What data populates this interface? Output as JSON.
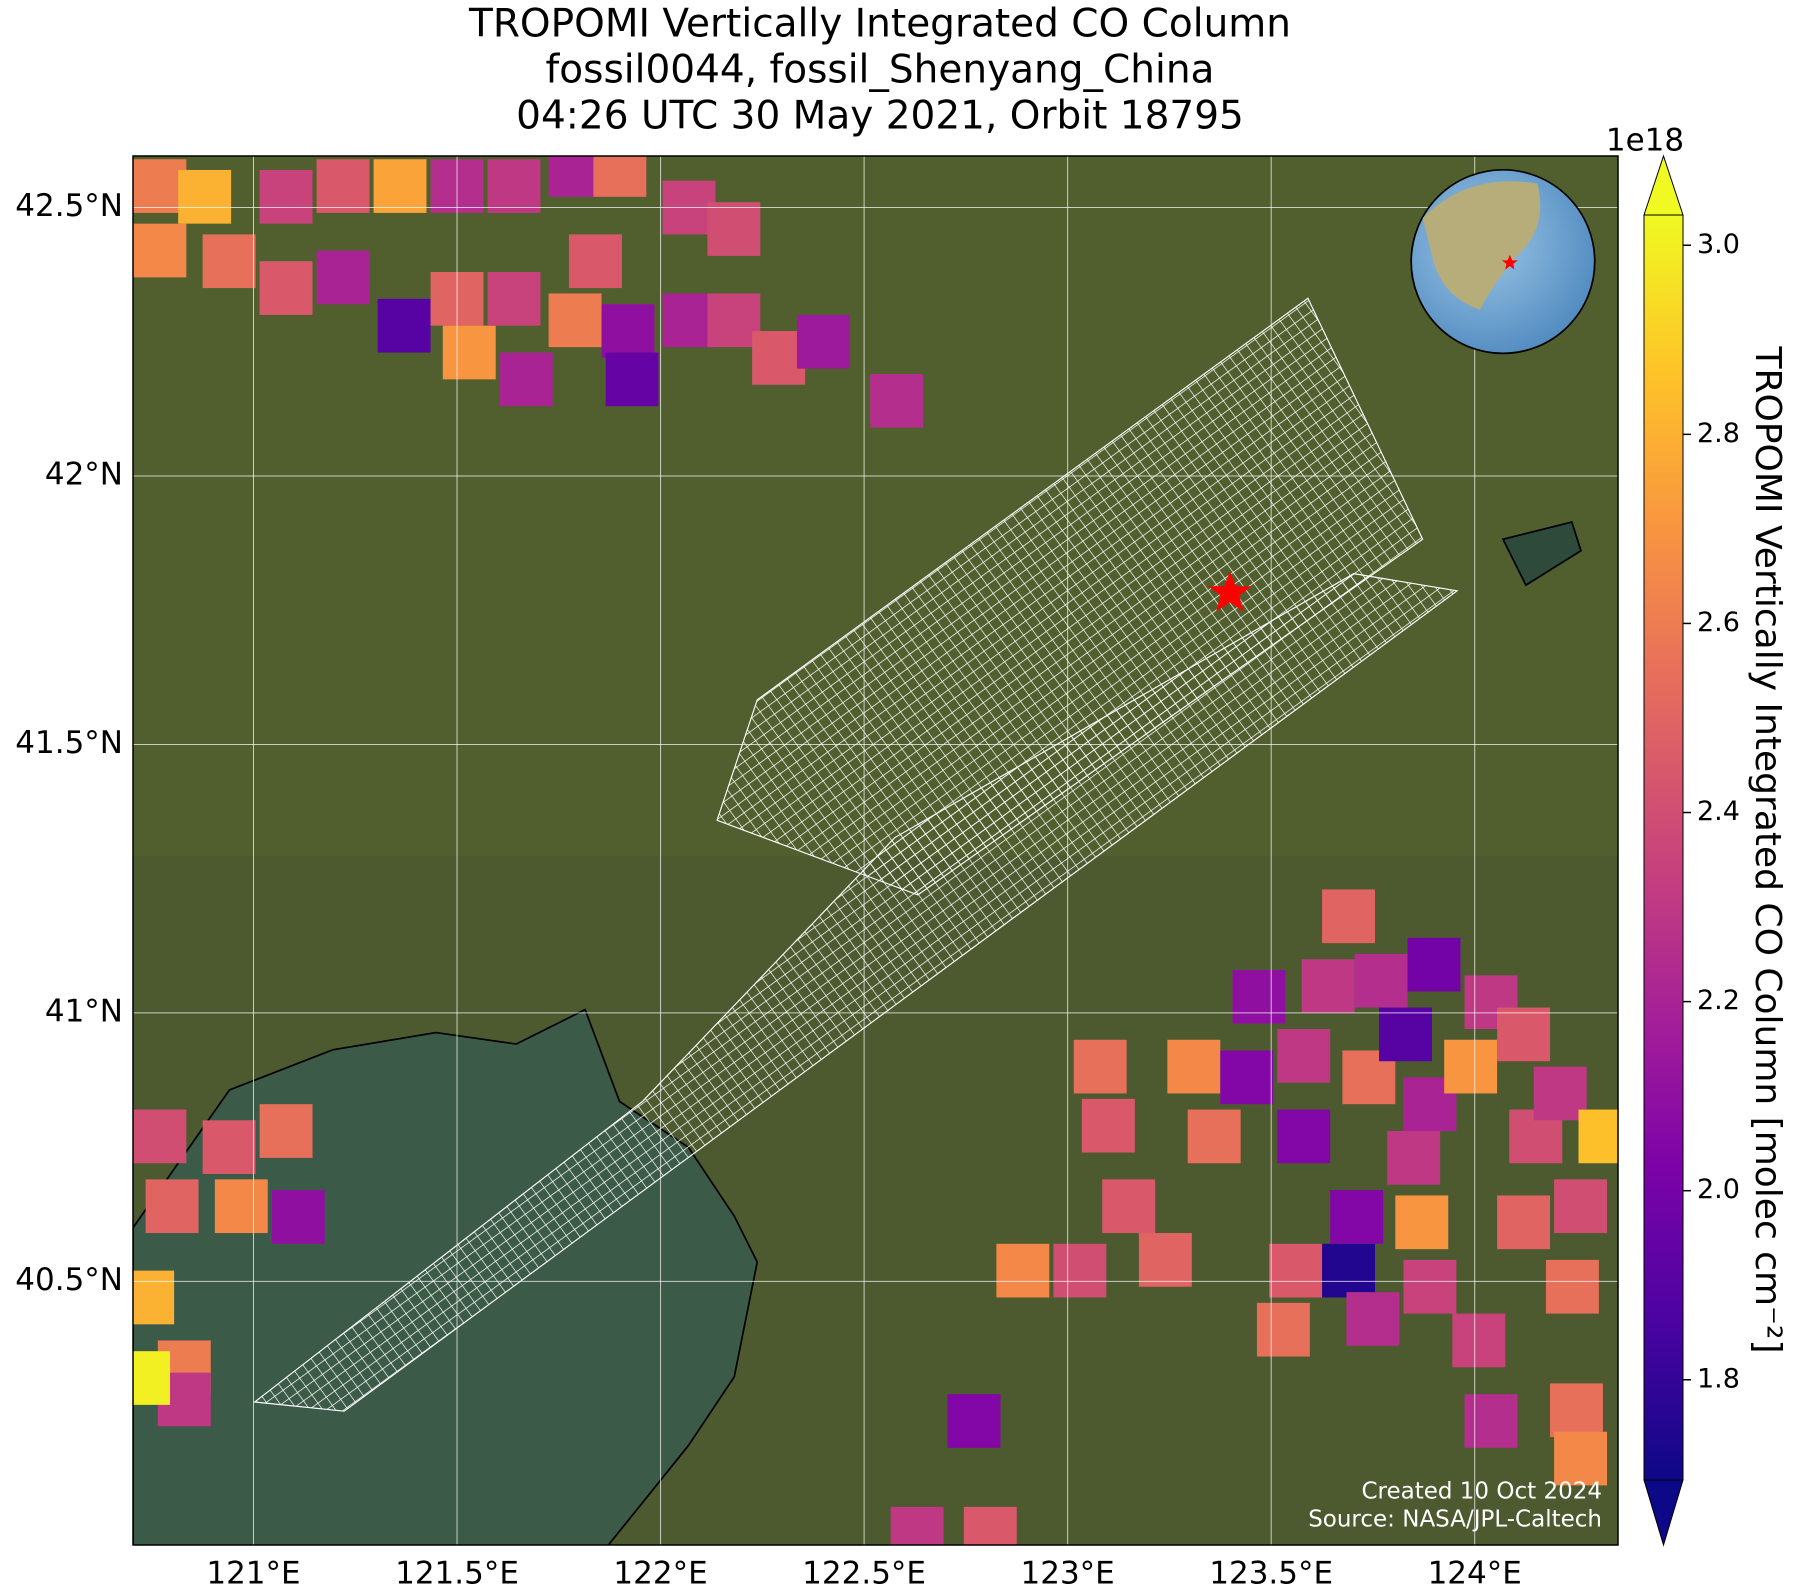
{
  "chart_data": {
    "type": "map",
    "title": [
      "TROPOMI Vertically Integrated CO Column",
      "fossil0044, fossil_Shenyang_China",
      "04:26 UTC 30 May 2021, Orbit 18795"
    ],
    "xlim": [
      120.704,
      124.352
    ],
    "ylim": [
      40.009,
      42.596
    ],
    "xticks": [
      {
        "value": 121,
        "label": "121°E"
      },
      {
        "value": 121.5,
        "label": "121.5°E"
      },
      {
        "value": 122,
        "label": "122°E"
      },
      {
        "value": 122.5,
        "label": "122.5°E"
      },
      {
        "value": 123,
        "label": "123°E"
      },
      {
        "value": 123.5,
        "label": "123.5°E"
      },
      {
        "value": 124,
        "label": "124°E"
      }
    ],
    "yticks": [
      {
        "value": 40.5,
        "label": "40.5°N"
      },
      {
        "value": 41,
        "label": "41°N"
      },
      {
        "value": 41.5,
        "label": "41.5°N"
      },
      {
        "value": 42,
        "label": "42°N"
      },
      {
        "value": 42.5,
        "label": "42.5°N"
      }
    ],
    "grid": true,
    "colorbar": {
      "colormap": "plasma",
      "clim": [
        1.694,
        3.032
      ],
      "extend": "both",
      "exponent": "1e18",
      "label": "TROPOMI Vertically Integrated CO Column [molec cm⁻²]",
      "ticks": [
        1.8,
        {
          "value": 2,
          "label": "2.0"
        },
        2.2,
        2.4,
        2.6,
        2.8,
        {
          "value": 3,
          "label": "3.0"
        }
      ]
    },
    "annotations": [
      "Created 10 Oct 2024",
      "Source: NASA/JPL-Caltech"
    ],
    "cell_size": [
      0.13,
      0.1
    ],
    "cells": [
      {
        "lon": 120.77,
        "lat": 42.54,
        "value": 2.6
      },
      {
        "lon": 120.88,
        "lat": 42.52,
        "value": 2.8
      },
      {
        "lon": 120.77,
        "lat": 42.42,
        "value": 2.65
      },
      {
        "lon": 120.94,
        "lat": 42.4,
        "value": 2.55
      },
      {
        "lon": 121.08,
        "lat": 42.52,
        "value": 2.35
      },
      {
        "lon": 121.22,
        "lat": 42.54,
        "value": 2.45
      },
      {
        "lon": 121.36,
        "lat": 42.54,
        "value": 2.75
      },
      {
        "lon": 121.5,
        "lat": 42.54,
        "value": 2.25
      },
      {
        "lon": 121.64,
        "lat": 42.54,
        "value": 2.3
      },
      {
        "lon": 121.79,
        "lat": 42.57,
        "value": 2.2
      },
      {
        "lon": 121.9,
        "lat": 42.57,
        "value": 2.55
      },
      {
        "lon": 122.07,
        "lat": 42.5,
        "value": 2.35
      },
      {
        "lon": 122.18,
        "lat": 42.46,
        "value": 2.4
      },
      {
        "lon": 121.08,
        "lat": 42.35,
        "value": 2.45
      },
      {
        "lon": 121.22,
        "lat": 42.37,
        "value": 2.2
      },
      {
        "lon": 121.37,
        "lat": 42.28,
        "value": 1.9
      },
      {
        "lon": 121.5,
        "lat": 42.33,
        "value": 2.5
      },
      {
        "lon": 121.53,
        "lat": 42.23,
        "value": 2.7
      },
      {
        "lon": 121.64,
        "lat": 42.33,
        "value": 2.35
      },
      {
        "lon": 121.67,
        "lat": 42.18,
        "value": 2.2
      },
      {
        "lon": 121.79,
        "lat": 42.29,
        "value": 2.6
      },
      {
        "lon": 121.84,
        "lat": 42.4,
        "value": 2.45
      },
      {
        "lon": 121.92,
        "lat": 42.27,
        "value": 2.1
      },
      {
        "lon": 121.93,
        "lat": 42.18,
        "value": 1.95
      },
      {
        "lon": 122.07,
        "lat": 42.29,
        "value": 2.2
      },
      {
        "lon": 122.18,
        "lat": 42.29,
        "value": 2.35
      },
      {
        "lon": 122.29,
        "lat": 42.22,
        "value": 2.45
      },
      {
        "lon": 122.4,
        "lat": 42.25,
        "value": 2.15
      },
      {
        "lon": 122.58,
        "lat": 42.14,
        "value": 2.25
      },
      {
        "lon": 123.08,
        "lat": 40.9,
        "value": 2.55
      },
      {
        "lon": 123.1,
        "lat": 40.79,
        "value": 2.45
      },
      {
        "lon": 123.15,
        "lat": 40.64,
        "value": 2.45
      },
      {
        "lon": 123.24,
        "lat": 40.54,
        "value": 2.5
      },
      {
        "lon": 122.89,
        "lat": 40.52,
        "value": 2.65
      },
      {
        "lon": 123.03,
        "lat": 40.52,
        "value": 2.4
      },
      {
        "lon": 123.31,
        "lat": 40.9,
        "value": 2.65
      },
      {
        "lon": 123.36,
        "lat": 40.77,
        "value": 2.55
      },
      {
        "lon": 123.44,
        "lat": 40.88,
        "value": 2.05
      },
      {
        "lon": 123.47,
        "lat": 41.03,
        "value": 2.1
      },
      {
        "lon": 123.58,
        "lat": 40.92,
        "value": 2.3
      },
      {
        "lon": 123.58,
        "lat": 40.77,
        "value": 2.05
      },
      {
        "lon": 123.64,
        "lat": 41.05,
        "value": 2.3
      },
      {
        "lon": 123.69,
        "lat": 41.18,
        "value": 2.5
      },
      {
        "lon": 123.74,
        "lat": 40.88,
        "value": 2.55
      },
      {
        "lon": 123.77,
        "lat": 41.06,
        "value": 2.25
      },
      {
        "lon": 123.83,
        "lat": 40.96,
        "value": 1.9
      },
      {
        "lon": 123.89,
        "lat": 40.83,
        "value": 2.2
      },
      {
        "lon": 123.9,
        "lat": 41.09,
        "value": 2.0
      },
      {
        "lon": 123.99,
        "lat": 40.9,
        "value": 2.7
      },
      {
        "lon": 124.04,
        "lat": 41.02,
        "value": 2.3
      },
      {
        "lon": 124.12,
        "lat": 40.96,
        "value": 2.45
      },
      {
        "lon": 124.15,
        "lat": 40.77,
        "value": 2.4
      },
      {
        "lon": 124.21,
        "lat": 40.85,
        "value": 2.3
      },
      {
        "lon": 123.85,
        "lat": 40.73,
        "value": 2.3
      },
      {
        "lon": 123.87,
        "lat": 40.61,
        "value": 2.7
      },
      {
        "lon": 123.69,
        "lat": 40.52,
        "value": 1.75
      },
      {
        "lon": 123.71,
        "lat": 40.62,
        "value": 2.05
      },
      {
        "lon": 123.56,
        "lat": 40.52,
        "value": 2.45
      },
      {
        "lon": 123.53,
        "lat": 40.41,
        "value": 2.55
      },
      {
        "lon": 123.75,
        "lat": 40.43,
        "value": 2.25
      },
      {
        "lon": 123.89,
        "lat": 40.49,
        "value": 2.35
      },
      {
        "lon": 124.01,
        "lat": 40.39,
        "value": 2.35
      },
      {
        "lon": 124.12,
        "lat": 40.61,
        "value": 2.5
      },
      {
        "lon": 124.24,
        "lat": 40.49,
        "value": 2.55
      },
      {
        "lon": 124.26,
        "lat": 40.64,
        "value": 2.4
      },
      {
        "lon": 124.04,
        "lat": 40.24,
        "value": 2.25
      },
      {
        "lon": 124.25,
        "lat": 40.26,
        "value": 2.55
      },
      {
        "lon": 124.26,
        "lat": 40.17,
        "value": 2.65
      },
      {
        "lon": 122.77,
        "lat": 40.24,
        "value": 2.05
      },
      {
        "lon": 122.63,
        "lat": 40.03,
        "value": 2.3
      },
      {
        "lon": 122.81,
        "lat": 40.03,
        "value": 2.45
      },
      {
        "lon": 124.32,
        "lat": 40.77,
        "value": 2.85
      },
      {
        "lon": 120.77,
        "lat": 40.77,
        "value": 2.4
      },
      {
        "lon": 120.74,
        "lat": 40.47,
        "value": 2.8
      },
      {
        "lon": 120.8,
        "lat": 40.64,
        "value": 2.5
      },
      {
        "lon": 120.94,
        "lat": 40.75,
        "value": 2.45
      },
      {
        "lon": 121.08,
        "lat": 40.78,
        "value": 2.55
      },
      {
        "lon": 120.97,
        "lat": 40.64,
        "value": 2.65
      },
      {
        "lon": 121.11,
        "lat": 40.62,
        "value": 2.1
      },
      {
        "lon": 120.83,
        "lat": 40.34,
        "value": 2.6
      },
      {
        "lon": 120.83,
        "lat": 40.28,
        "value": 2.3
      },
      {
        "lon": 120.73,
        "lat": 40.32,
        "value": 3.0
      }
    ]
  }
}
